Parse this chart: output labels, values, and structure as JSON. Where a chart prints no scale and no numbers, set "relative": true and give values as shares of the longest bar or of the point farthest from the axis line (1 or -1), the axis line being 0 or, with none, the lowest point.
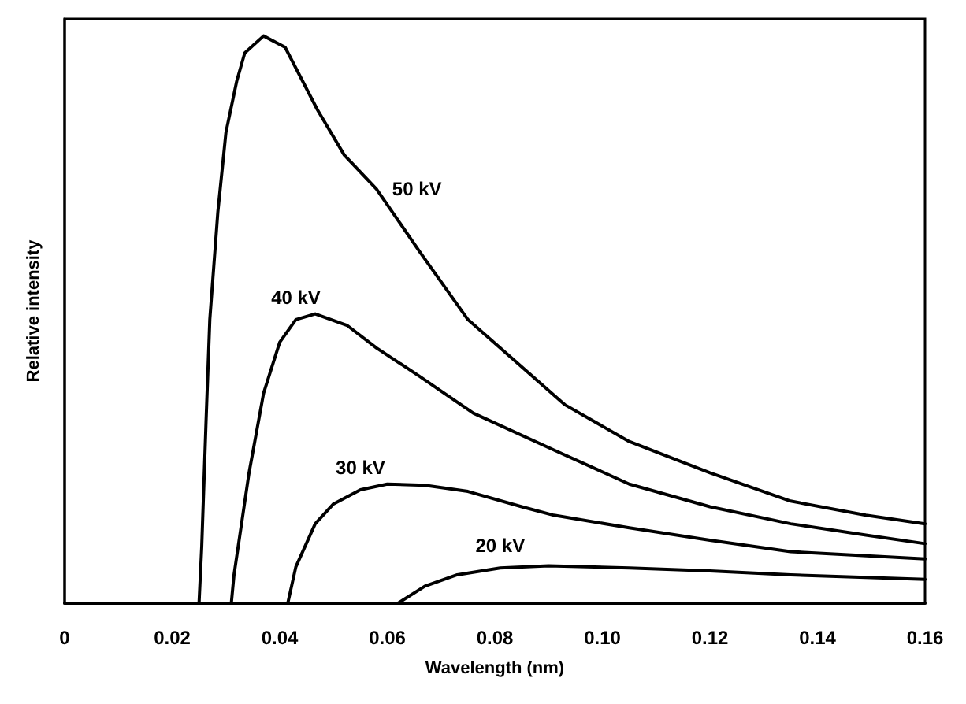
{
  "chart_data": {
    "type": "line",
    "xlabel": "Wavelength (nm)",
    "ylabel": "Relative intensity",
    "relative": true,
    "xlim": [
      0,
      0.16
    ],
    "xticks": [
      0,
      0.02,
      0.04,
      0.06,
      0.08,
      {
        "value": 0.1,
        "label": "0.10"
      },
      0.12,
      0.14,
      0.16
    ],
    "series": [
      {
        "name": "50 kV",
        "color": "#000000",
        "x": [
          0.025,
          0.0255,
          0.0263,
          0.027,
          0.0285,
          0.03,
          0.032,
          0.0335,
          0.037,
          0.041,
          0.047,
          0.052,
          0.058,
          0.066,
          0.075,
          0.093,
          0.105,
          0.12,
          0.135,
          0.149,
          0.16
        ],
        "values": [
          0,
          0.1,
          0.32,
          0.5,
          0.69,
          0.83,
          0.92,
          0.97,
          1,
          0.98,
          0.87,
          0.79,
          0.73,
          0.62,
          0.5,
          0.35,
          0.285,
          0.23,
          0.18,
          0.155,
          0.14
        ]
      },
      {
        "name": "40 kV",
        "color": "#000000",
        "x": [
          0.031,
          0.0315,
          0.0343,
          0.037,
          0.04,
          0.043,
          0.0466,
          0.0525,
          0.058,
          0.066,
          0.076,
          0.091,
          0.105,
          0.12,
          0.135,
          0.149,
          0.16
        ],
        "values": [
          0,
          0.05,
          0.23,
          0.37,
          0.46,
          0.5,
          0.51,
          0.49,
          0.45,
          0.4,
          0.335,
          0.27,
          0.21,
          0.17,
          0.14,
          0.12,
          0.105
        ]
      },
      {
        "name": "30 kV",
        "color": "#000000",
        "x": [
          0.0415,
          0.043,
          0.0466,
          0.05,
          0.055,
          0.06,
          0.067,
          0.075,
          0.085,
          0.091,
          0.105,
          0.12,
          0.135,
          0.16
        ],
        "values": [
          0,
          0.064,
          0.14,
          0.175,
          0.2,
          0.21,
          0.208,
          0.197,
          0.17,
          0.155,
          0.133,
          0.111,
          0.091,
          0.078
        ]
      },
      {
        "name": "20 kV",
        "color": "#000000",
        "x": [
          0.062,
          0.067,
          0.073,
          0.081,
          0.09,
          0.105,
          0.12,
          0.135,
          0.16
        ],
        "values": [
          0,
          0.03,
          0.05,
          0.062,
          0.066,
          0.062,
          0.057,
          0.05,
          0.042
        ]
      }
    ]
  }
}
